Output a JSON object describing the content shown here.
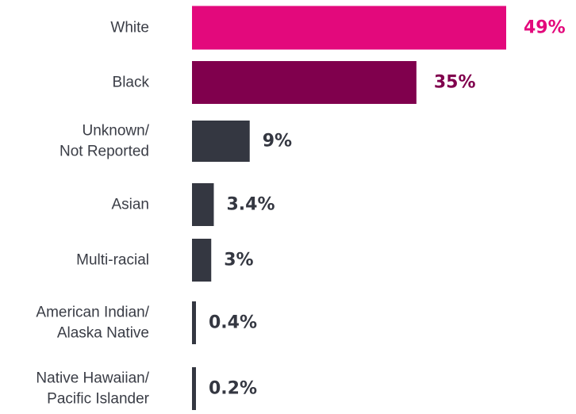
{
  "chart_data": {
    "type": "bar",
    "orientation": "horizontal",
    "categories": [
      [
        "White"
      ],
      [
        "Black"
      ],
      [
        "Unknown/",
        "Not Reported"
      ],
      [
        "Asian"
      ],
      [
        "Multi-racial"
      ],
      [
        "American Indian/",
        "Alaska Native"
      ],
      [
        "Native Hawaiian/",
        "Pacific Islander"
      ]
    ],
    "values": [
      49,
      35,
      9,
      3.4,
      3,
      0.4,
      0.2
    ],
    "value_labels": [
      "49%",
      "35%",
      "9%",
      "3.4%",
      "3%",
      "0.4%",
      "0.2%"
    ],
    "colors": [
      "#e3097c",
      "#80004d",
      "#343741",
      "#343741",
      "#343741",
      "#343741",
      "#343741"
    ],
    "label_colors": [
      "#e3097c",
      "#80004d",
      "#343741",
      "#343741",
      "#343741",
      "#343741",
      "#343741"
    ],
    "xlim": [
      0,
      49
    ],
    "grid": false,
    "legend": "none"
  }
}
